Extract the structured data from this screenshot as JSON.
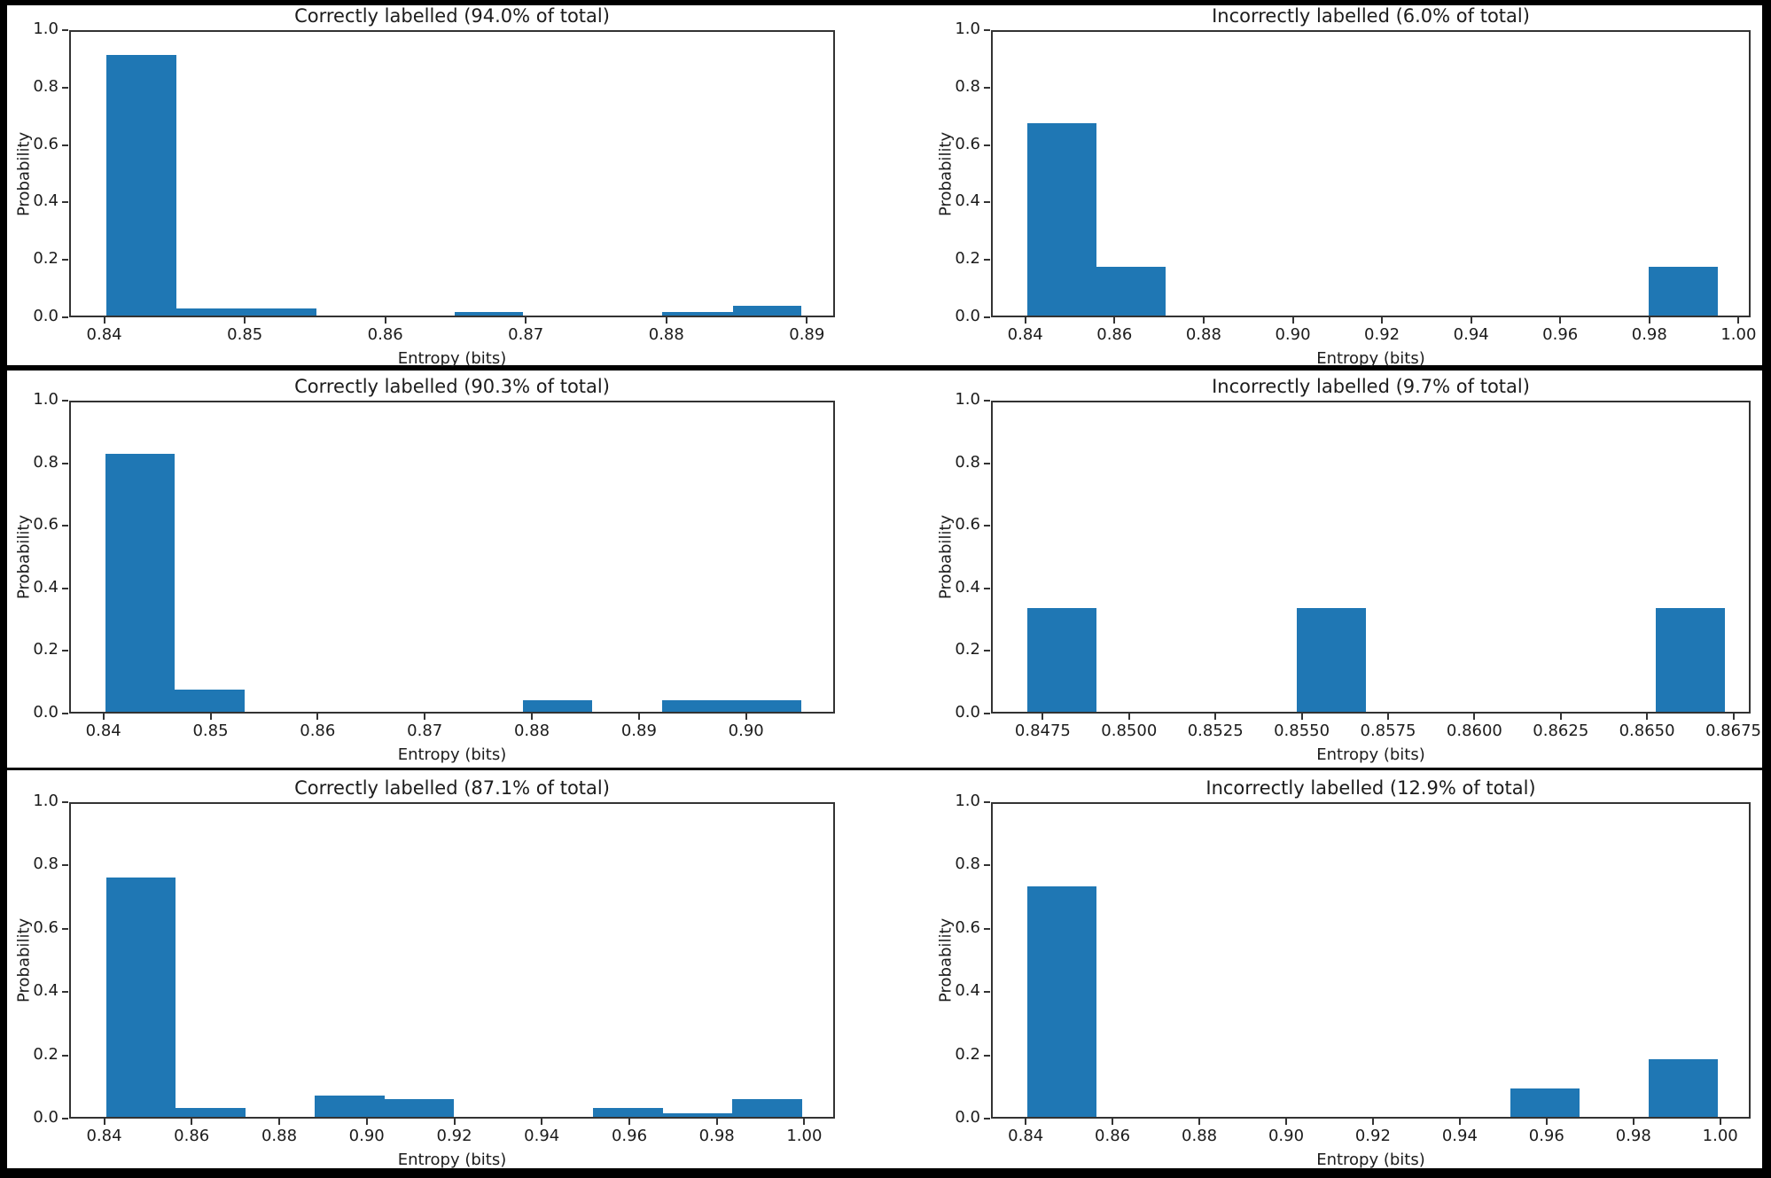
{
  "figure": {
    "background": "#000000",
    "panel_background": "#ffffff",
    "bar_color": "#1f77b4",
    "spine_color": "#333333",
    "text_color": "#1c1c1c"
  },
  "chart_data": [
    {
      "type": "bar",
      "subtype": "histogram",
      "title": "Correctly labelled (94.0% of total)",
      "percent_of_total": 94.0,
      "xlabel": "Entropy (bits)",
      "ylabel": "Probability",
      "grid": false,
      "ylim": [
        0,
        1
      ],
      "yticks": [
        0,
        0.2,
        0.4,
        0.6,
        0.8,
        1.0
      ],
      "ytick_labels": [
        "0.0",
        "0.2",
        "0.4",
        "0.6",
        "0.8",
        "1.0"
      ],
      "xlim": [
        0.8375,
        0.892
      ],
      "xticks": [
        0.84,
        0.85,
        0.86,
        0.87,
        0.88,
        0.89
      ],
      "xtick_labels": [
        "0.84",
        "0.85",
        "0.86",
        "0.87",
        "0.88",
        "0.89"
      ],
      "bins": [
        [
          0.84,
          0.845,
          0.907
        ],
        [
          0.845,
          0.85,
          0.024
        ],
        [
          0.85,
          0.855,
          0.024
        ],
        [
          0.8648,
          0.8697,
          0.013
        ],
        [
          0.8796,
          0.8846,
          0.013
        ],
        [
          0.8846,
          0.8895,
          0.033
        ]
      ]
    },
    {
      "type": "bar",
      "subtype": "histogram",
      "title": "Incorrectly labelled (6.0% of total)",
      "percent_of_total": 6.0,
      "xlabel": "Entropy (bits)",
      "ylabel": "Probability",
      "grid": false,
      "ylim": [
        0,
        1
      ],
      "yticks": [
        0,
        0.2,
        0.4,
        0.6,
        0.8,
        1.0
      ],
      "ytick_labels": [
        "0.0",
        "0.2",
        "0.4",
        "0.6",
        "0.8",
        "1.0"
      ],
      "xlim": [
        0.8323,
        1.0027
      ],
      "xticks": [
        0.84,
        0.86,
        0.88,
        0.9,
        0.92,
        0.94,
        0.96,
        0.98,
        1.0
      ],
      "xtick_labels": [
        "0.84",
        "0.86",
        "0.88",
        "0.90",
        "0.92",
        "0.94",
        "0.96",
        "0.98",
        "1.00"
      ],
      "bins": [
        [
          0.84,
          0.8555,
          0.669
        ],
        [
          0.8555,
          0.871,
          0.17
        ],
        [
          0.9795,
          0.995,
          0.17
        ]
      ]
    },
    {
      "type": "bar",
      "subtype": "histogram",
      "title": "Correctly labelled (90.3% of total)",
      "percent_of_total": 90.3,
      "xlabel": "Entropy (bits)",
      "ylabel": "Probability",
      "grid": false,
      "ylim": [
        0,
        1
      ],
      "yticks": [
        0,
        0.2,
        0.4,
        0.6,
        0.8,
        1.0
      ],
      "ytick_labels": [
        "0.0",
        "0.2",
        "0.4",
        "0.6",
        "0.8",
        "1.0"
      ],
      "xlim": [
        0.8368,
        0.9083
      ],
      "xticks": [
        0.84,
        0.85,
        0.86,
        0.87,
        0.88,
        0.89,
        0.9
      ],
      "xtick_labels": [
        "0.84",
        "0.85",
        "0.86",
        "0.87",
        "0.88",
        "0.89",
        "0.90"
      ],
      "bins": [
        [
          0.84,
          0.8465,
          0.824
        ],
        [
          0.8465,
          0.853,
          0.072
        ],
        [
          0.879,
          0.8855,
          0.036
        ],
        [
          0.892,
          0.8985,
          0.036
        ],
        [
          0.8985,
          0.905,
          0.036
        ]
      ]
    },
    {
      "type": "bar",
      "subtype": "histogram",
      "title": "Incorrectly labelled (9.7% of total)",
      "percent_of_total": 9.7,
      "xlabel": "Entropy (bits)",
      "ylabel": "Probability",
      "grid": false,
      "ylim": [
        0,
        1
      ],
      "yticks": [
        0,
        0.2,
        0.4,
        0.6,
        0.8,
        1.0
      ],
      "ytick_labels": [
        "0.0",
        "0.2",
        "0.4",
        "0.6",
        "0.8",
        "1.0"
      ],
      "xlim": [
        0.846,
        0.868
      ],
      "xticks": [
        0.8475,
        0.85,
        0.8525,
        0.855,
        0.8575,
        0.86,
        0.8625,
        0.865,
        0.8675
      ],
      "xtick_labels": [
        "0.8475",
        "0.8500",
        "0.8525",
        "0.8550",
        "0.8575",
        "0.8600",
        "0.8625",
        "0.8650",
        "0.8675"
      ],
      "bins": [
        [
          0.847,
          0.849,
          0.333
        ],
        [
          0.8548,
          0.8568,
          0.333
        ],
        [
          0.8652,
          0.8672,
          0.333
        ]
      ]
    },
    {
      "type": "bar",
      "subtype": "histogram",
      "title": "Correctly labelled (87.1% of total)",
      "percent_of_total": 87.1,
      "xlabel": "Entropy (bits)",
      "ylabel": "Probability",
      "grid": false,
      "ylim": [
        0,
        1
      ],
      "yticks": [
        0,
        0.2,
        0.4,
        0.6,
        0.8,
        1.0
      ],
      "ytick_labels": [
        "0.0",
        "0.2",
        "0.4",
        "0.6",
        "0.8",
        "1.0"
      ],
      "xlim": [
        0.832,
        1.007
      ],
      "xticks": [
        0.84,
        0.86,
        0.88,
        0.9,
        0.92,
        0.94,
        0.96,
        0.98,
        1.0
      ],
      "xtick_labels": [
        "0.84",
        "0.86",
        "0.88",
        "0.90",
        "0.92",
        "0.94",
        "0.96",
        "0.98",
        "1.00"
      ],
      "bins": [
        [
          0.84,
          0.8559,
          0.756
        ],
        [
          0.8559,
          0.8718,
          0.028
        ],
        [
          0.8877,
          0.9036,
          0.068
        ],
        [
          0.9036,
          0.9195,
          0.055
        ],
        [
          0.9513,
          0.9672,
          0.028
        ],
        [
          0.9672,
          0.9831,
          0.012
        ],
        [
          0.9831,
          0.999,
          0.055
        ]
      ]
    },
    {
      "type": "bar",
      "subtype": "histogram",
      "title": "Incorrectly labelled (12.9% of total)",
      "percent_of_total": 12.9,
      "xlabel": "Entropy (bits)",
      "ylabel": "Probability",
      "grid": false,
      "ylim": [
        0,
        1
      ],
      "yticks": [
        0,
        0.2,
        0.4,
        0.6,
        0.8,
        1.0
      ],
      "ytick_labels": [
        "0.0",
        "0.2",
        "0.4",
        "0.6",
        "0.8",
        "1.0"
      ],
      "xlim": [
        0.832,
        1.007
      ],
      "xticks": [
        0.84,
        0.86,
        0.88,
        0.9,
        0.92,
        0.94,
        0.96,
        0.98,
        1.0
      ],
      "xtick_labels": [
        "0.84",
        "0.86",
        "0.88",
        "0.90",
        "0.92",
        "0.94",
        "0.96",
        "0.98",
        "1.00"
      ],
      "bins": [
        [
          0.84,
          0.8559,
          0.728
        ],
        [
          0.9513,
          0.9672,
          0.089
        ],
        [
          0.9831,
          0.999,
          0.181
        ]
      ]
    }
  ]
}
